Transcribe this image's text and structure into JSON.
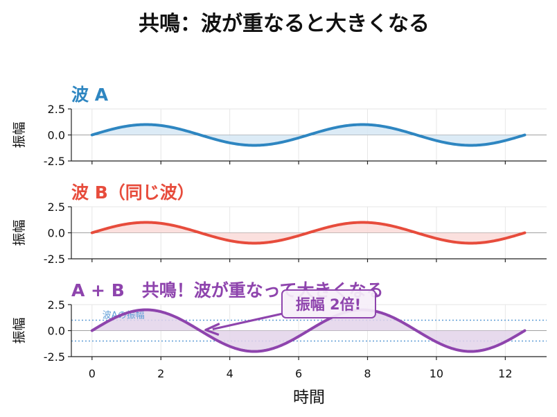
{
  "figure": {
    "suptitle": "共鳴：波が重なると大きくなる",
    "xlabel": "時間"
  },
  "chart_data": [
    {
      "type": "line",
      "title": "波 A",
      "ylabel": "振幅",
      "color": "#2e86c1",
      "fill_color": "#d6e7f4",
      "amplitude": 1,
      "function": "sin(t)",
      "xlim": [
        -0.6,
        13.2
      ],
      "ylim": [
        -2.5,
        2.5
      ],
      "x_range": [
        0,
        12.566
      ],
      "xticks": [
        0,
        2,
        4,
        6,
        8,
        10,
        12
      ],
      "yticks": [
        -2.5,
        0.0,
        2.5
      ],
      "ytick_labels": [
        "-2.5",
        "0.0",
        "2.5"
      ],
      "grid": true
    },
    {
      "type": "line",
      "title": "波 B（同じ波）",
      "ylabel": "振幅",
      "color": "#e74c3c",
      "fill_color": "#fadbd8",
      "amplitude": 1,
      "function": "sin(t)",
      "xlim": [
        -0.6,
        13.2
      ],
      "ylim": [
        -2.5,
        2.5
      ],
      "x_range": [
        0,
        12.566
      ],
      "xticks": [
        0,
        2,
        4,
        6,
        8,
        10,
        12
      ],
      "yticks": [
        -2.5,
        0.0,
        2.5
      ],
      "ytick_labels": [
        "-2.5",
        "0.0",
        "2.5"
      ],
      "grid": true
    },
    {
      "type": "line",
      "title": "A + B　共鳴！波が重なって大きくなる",
      "ylabel": "振幅",
      "color": "#8e44ad",
      "fill_color": "#e3d3ea",
      "amplitude": 2,
      "function": "2·sin(t)",
      "xlim": [
        -0.6,
        13.2
      ],
      "ylim": [
        -2.5,
        2.5
      ],
      "x_range": [
        0,
        12.566
      ],
      "xticks": [
        0,
        2,
        4,
        6,
        8,
        10,
        12
      ],
      "xtick_labels": [
        "0",
        "2",
        "4",
        "6",
        "8",
        "10",
        "12"
      ],
      "yticks": [
        -2.5,
        0.0,
        2.5
      ],
      "ytick_labels": [
        "-2.5",
        "0.0",
        "2.5"
      ],
      "grid": true,
      "reference_lines": {
        "values": [
          1,
          -1
        ],
        "label": "波Aの振幅",
        "color": "#5d9cd6"
      },
      "annotation": {
        "text": "振幅 2倍!",
        "arrow_to": [
          3.3,
          0.0
        ]
      }
    }
  ]
}
